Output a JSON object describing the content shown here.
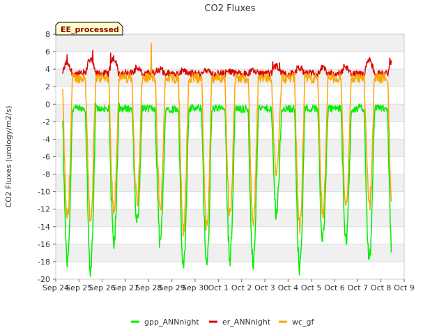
{
  "chart_data": {
    "type": "line",
    "title": "CO2 Fluxes",
    "ylabel": "CO2 Fluxes (urology/m2/s)",
    "xlabel": "",
    "ylim": [
      -20,
      8
    ],
    "xlim": [
      0,
      15
    ],
    "x_ticks": [
      {
        "label": "Sep 24",
        "day": 0
      },
      {
        "label": "Sep 25",
        "day": 1
      },
      {
        "label": "Sep 26",
        "day": 2
      },
      {
        "label": "Sep 27",
        "day": 3
      },
      {
        "label": "Sep 28",
        "day": 4
      },
      {
        "label": "Sep 29",
        "day": 5
      },
      {
        "label": "Sep 30",
        "day": 6
      },
      {
        "label": "Oct 1",
        "day": 7
      },
      {
        "label": "Oct 2",
        "day": 8
      },
      {
        "label": "Oct 3",
        "day": 9
      },
      {
        "label": "Oct 4",
        "day": 10
      },
      {
        "label": "Oct 5",
        "day": 11
      },
      {
        "label": "Oct 6",
        "day": 12
      },
      {
        "label": "Oct 7",
        "day": 13
      },
      {
        "label": "Oct 8",
        "day": 14
      },
      {
        "label": "Oct 9",
        "day": 15
      }
    ],
    "y_ticks": [
      8,
      6,
      4,
      2,
      0,
      -2,
      -4,
      -6,
      -8,
      -10,
      -12,
      -14,
      -16,
      -18,
      -20
    ],
    "x_range_days": [
      0.3,
      14.45
    ],
    "series": [
      {
        "name": "gpp_ANNnight",
        "color": "#00ee00",
        "night_value": -0.5,
        "daily_minimum": [
          -18.5,
          -19,
          -15.8,
          -13.5,
          -16,
          -18.7,
          -18.6,
          -17.5,
          -18.2,
          -12.5,
          -19,
          -15.5,
          -15.2,
          -18
        ]
      },
      {
        "name": "er_ANNnight",
        "color": "#dd0000",
        "daily_peak": [
          5.7,
          6.2,
          6.5,
          4.5,
          4.3,
          4.1,
          4.1,
          4.0,
          4.1,
          5.0,
          4.6,
          4.5,
          4.6,
          6.0
        ],
        "base_value": 3.5
      },
      {
        "name": "wc_gf",
        "color": "#ffa500",
        "night_value": 3.0,
        "daily_minimum": [
          -13,
          -13,
          -12.2,
          -11,
          -11.5,
          -14.3,
          -14.2,
          -12.5,
          -13.5,
          -7.5,
          -14,
          -12.5,
          -12,
          -11.5
        ],
        "spike": {
          "day": 4.12,
          "value": 7
        }
      }
    ],
    "annotation": "EE_processed"
  }
}
